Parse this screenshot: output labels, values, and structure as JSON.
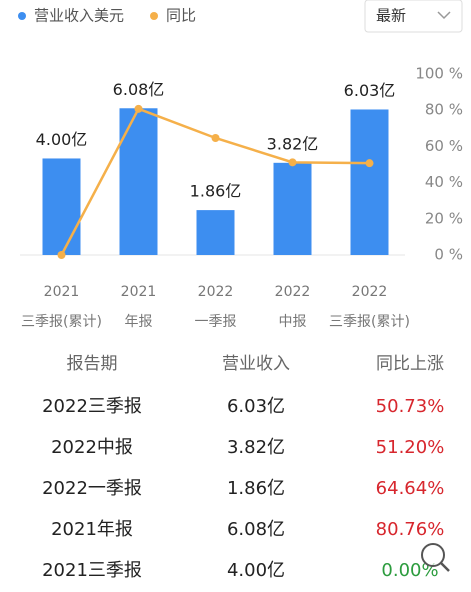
{
  "chart_data": {
    "type": "bar-line",
    "categories": [
      [
        "2021",
        "三季报(累计)"
      ],
      [
        "2021",
        "年报"
      ],
      [
        "2022",
        "一季报"
      ],
      [
        "2022",
        "中报"
      ],
      [
        "2022",
        "三季报(累计)"
      ]
    ],
    "series": [
      {
        "name": "营业收入美元",
        "type": "bar",
        "color": "#3d8ef0",
        "values": [
          4.0,
          6.08,
          1.86,
          3.82,
          6.03
        ],
        "value_labels": [
          "4.00亿",
          "6.08亿",
          "1.86亿",
          "3.82亿",
          "6.03亿"
        ]
      },
      {
        "name": "同比",
        "type": "line",
        "axis": "y2",
        "color": "#f5b04a",
        "values": [
          0.0,
          80.76,
          64.64,
          51.2,
          50.73
        ]
      }
    ],
    "ylim": [
      0,
      7.5
    ],
    "y2lim": [
      0,
      100
    ],
    "y2ticks": [
      {
        "value": 0,
        "label": "0 %"
      },
      {
        "value": 20,
        "label": "20 %"
      },
      {
        "value": 40,
        "label": "40 %"
      },
      {
        "value": 60,
        "label": "60 %"
      },
      {
        "value": 80,
        "label": "80 %"
      },
      {
        "value": 100,
        "label": "100 %"
      }
    ],
    "legend": "top-left",
    "grid": false
  },
  "dropdown": {
    "label": "最新"
  },
  "table": {
    "header": [
      "报告期",
      "营业收入",
      "同比上涨"
    ],
    "rows": [
      [
        "2022三季报",
        "6.03亿",
        "50.73%"
      ],
      [
        "2022中报",
        "3.82亿",
        "51.20%"
      ],
      [
        "2022一季报",
        "1.86亿",
        "64.64%"
      ],
      [
        "2021年报",
        "6.08亿",
        "80.76%"
      ],
      [
        "2021三季报",
        "4.00亿",
        "0.00%"
      ]
    ],
    "colors": {
      "up": "#d7262d",
      "flat": "#2c9c3e"
    }
  }
}
